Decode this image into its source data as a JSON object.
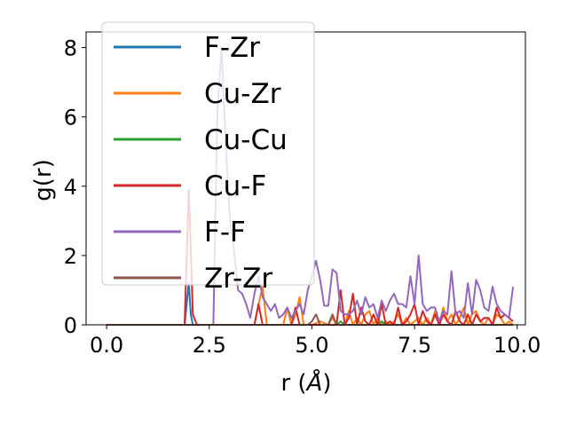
{
  "chart_data": {
    "type": "line",
    "xlabel": "r (",
    "xlabel_unit": "Å",
    "xlabel_close": ")",
    "ylabel": "g(r)",
    "xlim": [
      -0.5,
      10.2
    ],
    "ylim": [
      0,
      8.45
    ],
    "xticks": [
      0.0,
      2.5,
      5.0,
      7.5,
      10.0
    ],
    "xtick_labels": [
      "0.0",
      "2.5",
      "5.0",
      "7.5",
      "10.0"
    ],
    "yticks": [
      0,
      2,
      4,
      6,
      8
    ],
    "ytick_labels": [
      "0",
      "2",
      "4",
      "6",
      "8"
    ],
    "grid": false,
    "legend_position": "upper-left",
    "series": [
      {
        "name": "F-Zr",
        "color": "#1f77b4",
        "x": [
          0,
          1.9,
          2.0,
          2.05,
          2.1,
          2.2,
          9.9
        ],
        "y": [
          0,
          0,
          1.2,
          0.3,
          0,
          0,
          0
        ]
      },
      {
        "name": "Cu-Zr",
        "color": "#ff7f0e",
        "x": [
          0,
          3.6,
          3.7,
          3.8,
          3.9,
          4.3,
          4.4,
          4.5,
          4.6,
          4.7,
          4.8,
          4.9,
          5.0,
          5.2,
          5.4,
          5.5,
          5.6,
          5.8,
          5.9,
          6.0,
          6.1,
          6.2,
          6.3,
          6.4,
          6.5,
          6.6,
          6.7,
          6.8,
          6.9,
          7.0,
          7.1,
          7.2,
          7.3,
          7.4,
          7.5,
          7.6,
          7.7,
          7.8,
          7.9,
          8.0,
          8.1,
          8.2,
          8.3,
          8.4,
          8.5,
          8.6,
          8.7,
          8.8,
          8.9,
          9.0,
          9.1,
          9.2,
          9.3,
          9.4,
          9.5,
          9.6,
          9.7,
          9.8,
          9.9
        ],
        "y": [
          0,
          0,
          0.6,
          1.1,
          0,
          0,
          0.5,
          0,
          0.3,
          0.8,
          0,
          0,
          0,
          0.1,
          0,
          0.2,
          0,
          0,
          0.4,
          0,
          0.2,
          0,
          0.3,
          0.4,
          0,
          0.2,
          0,
          0.1,
          0,
          0.1,
          0.3,
          0,
          0.2,
          0,
          0.1,
          0.2,
          0,
          0.2,
          0,
          0.4,
          0,
          0.5,
          0.1,
          0.3,
          0,
          0.2,
          0.5,
          0,
          0.3,
          0.4,
          0.1,
          0,
          0.2,
          0,
          0.3,
          0.2,
          0,
          0.1,
          0
        ]
      },
      {
        "name": "Cu-Cu",
        "color": "#2ca02c",
        "x": [
          0,
          5.6,
          5.7,
          5.8,
          6.6,
          6.7,
          6.8,
          9.9
        ],
        "y": [
          0,
          0,
          0.1,
          0,
          0,
          0.1,
          0,
          0
        ]
      },
      {
        "name": "Cu-F",
        "color": "#d62728",
        "x": [
          0,
          1.9,
          2.0,
          2.1,
          2.2,
          3.6,
          3.7,
          3.8,
          3.9,
          4.5,
          4.6,
          4.7,
          4.8,
          5.6,
          5.7,
          5.8,
          5.9,
          6.0,
          6.1,
          6.2,
          6.3,
          6.4,
          6.5,
          6.6,
          6.7,
          6.8,
          6.9,
          7.0,
          7.1,
          7.2,
          7.3,
          7.4,
          7.5,
          7.6,
          7.7,
          7.8,
          7.9,
          8.0,
          8.1,
          8.2,
          8.3,
          8.4,
          8.5,
          8.6,
          8.7,
          8.8,
          8.9,
          9.0,
          9.1,
          9.2,
          9.3,
          9.4,
          9.5,
          9.6,
          9.7,
          9.8,
          9.9
        ],
        "y": [
          0,
          0,
          3.9,
          0.3,
          0,
          0,
          0.6,
          0,
          0,
          0,
          0.5,
          0,
          0,
          0,
          1.0,
          0,
          0.2,
          0.9,
          0,
          0.5,
          0.1,
          0,
          0.3,
          0,
          0.6,
          0,
          0.1,
          0,
          0.5,
          0,
          0.1,
          0.3,
          0.6,
          0,
          0.4,
          0.1,
          0,
          0.3,
          0,
          0.3,
          0.1,
          0,
          0.4,
          0.1,
          0,
          0.3,
          0,
          0.3,
          0.1,
          0.2,
          0.2,
          0,
          0.5,
          0.2,
          0.3,
          0.2,
          0.1
        ]
      },
      {
        "name": "F-F",
        "color": "#9467bd",
        "x": [
          0,
          2.6,
          2.7,
          2.8,
          2.9,
          3.0,
          3.1,
          3.2,
          3.3,
          3.4,
          3.5,
          3.6,
          3.7,
          3.8,
          3.9,
          4.0,
          4.1,
          4.2,
          4.3,
          4.4,
          4.5,
          4.6,
          4.7,
          4.8,
          4.9,
          5.0,
          5.1,
          5.2,
          5.3,
          5.4,
          5.5,
          5.6,
          5.7,
          5.8,
          5.9,
          6.0,
          6.1,
          6.2,
          6.3,
          6.4,
          6.5,
          6.6,
          6.7,
          6.8,
          6.9,
          7.0,
          7.1,
          7.2,
          7.3,
          7.4,
          7.5,
          7.6,
          7.7,
          7.8,
          7.9,
          8.0,
          8.1,
          8.2,
          8.3,
          8.4,
          8.5,
          8.6,
          8.7,
          8.8,
          8.9,
          9.0,
          9.1,
          9.2,
          9.3,
          9.4,
          9.5,
          9.6,
          9.7,
          9.8,
          9.9
        ],
        "y": [
          0,
          0,
          6.2,
          8.0,
          5.2,
          3.1,
          2.2,
          1.0,
          0.9,
          0.6,
          0.2,
          0.9,
          1.4,
          0.8,
          0.6,
          0.4,
          0.6,
          0.2,
          0.3,
          0.5,
          0.2,
          0.4,
          0.6,
          0.3,
          1.0,
          1.4,
          1.85,
          1.3,
          0.55,
          0.55,
          1.6,
          1.5,
          0.4,
          0.3,
          0.3,
          0.4,
          0.7,
          0.3,
          0.8,
          0.5,
          0.6,
          0.2,
          0.7,
          0.4,
          0.7,
          0.9,
          0.6,
          0.6,
          0.5,
          1.4,
          0.6,
          2.0,
          0.6,
          0.4,
          0.5,
          0.5,
          0.1,
          0.4,
          0.3,
          1.55,
          0.3,
          0.4,
          0.2,
          1.2,
          0.3,
          1.3,
          1.0,
          0.5,
          0.4,
          1.1,
          0.6,
          0.4,
          0.3,
          0.2,
          1.1
        ]
      },
      {
        "name": "Zr-Zr",
        "color": "#8c564b",
        "x": [
          0,
          4.9,
          5.0,
          5.1,
          5.2,
          5.4,
          5.5,
          5.6,
          9.9
        ],
        "y": [
          0,
          0,
          0.1,
          0.3,
          0,
          0,
          0.3,
          0,
          0
        ]
      }
    ]
  }
}
